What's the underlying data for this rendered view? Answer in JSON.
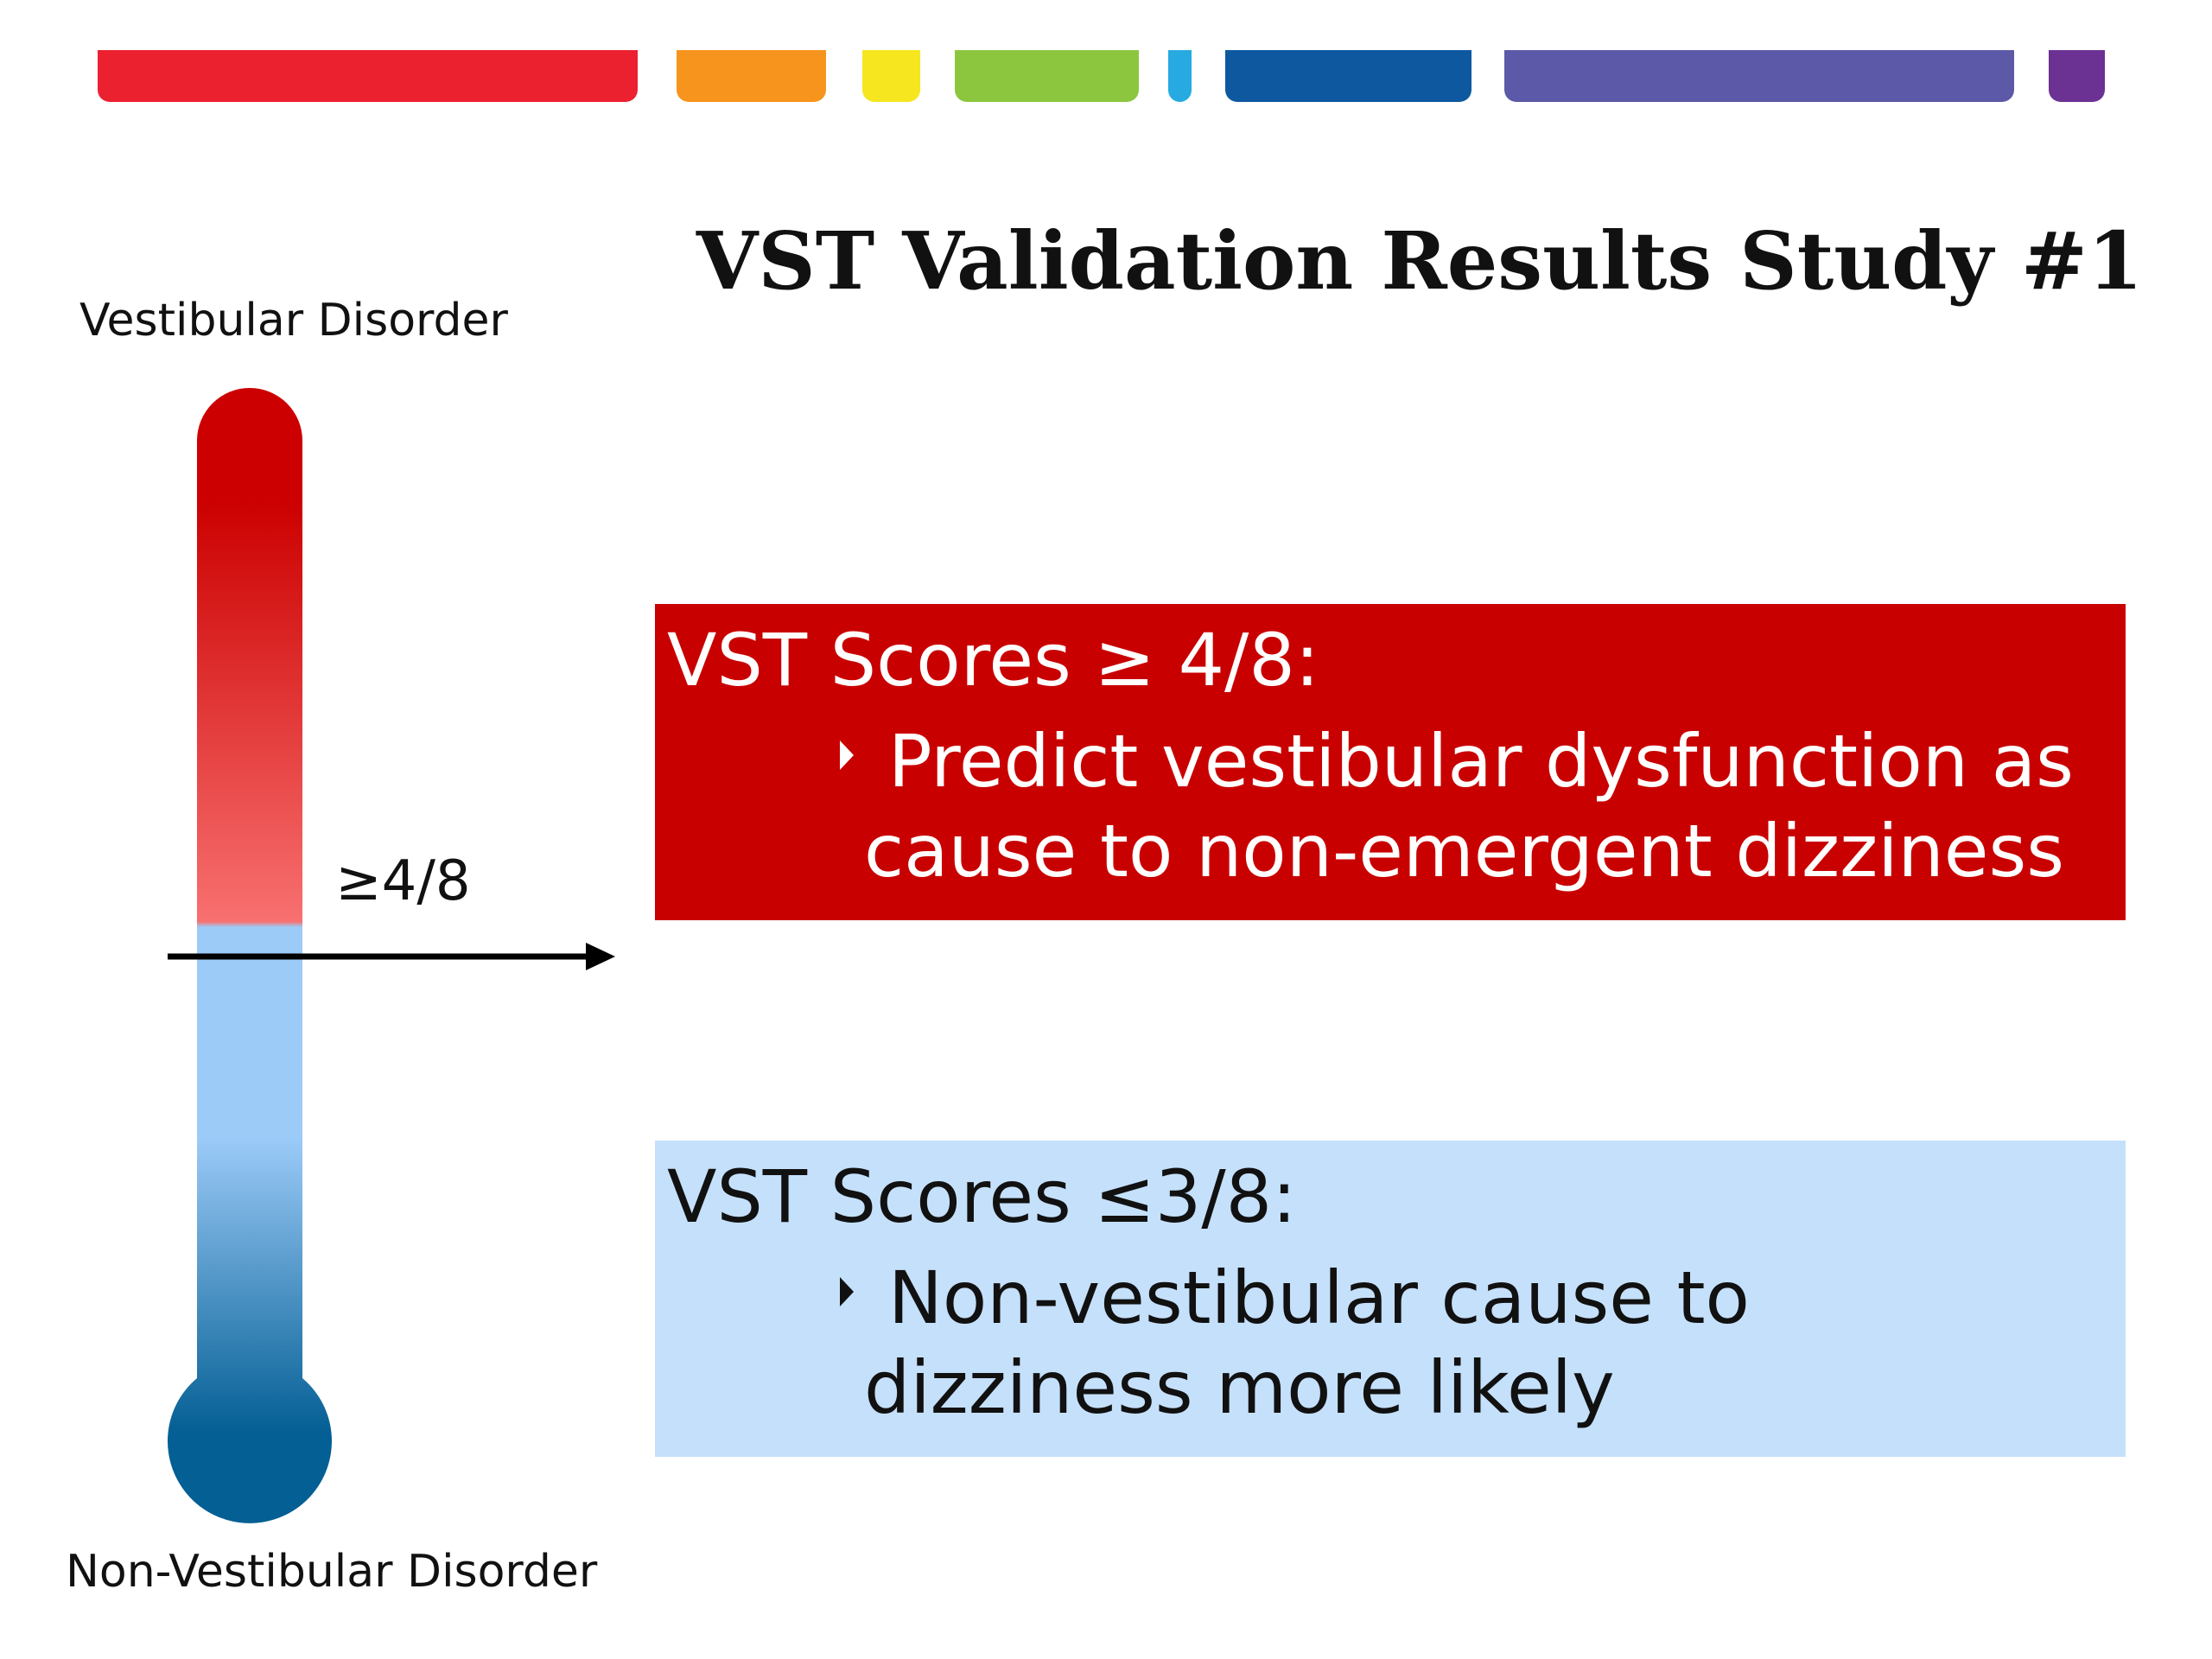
{
  "title": "VST Validation Results Study #1",
  "stripes": [
    {
      "color": "#ec2130"
    },
    {
      "color": "#f7941d"
    },
    {
      "color": "#f5e61f"
    },
    {
      "color": "#8cc63f"
    },
    {
      "color": "#27aae1"
    },
    {
      "color": "#0e58a0"
    },
    {
      "color": "#5c59a8"
    },
    {
      "color": "#6b3193"
    }
  ],
  "thermometer": {
    "top_label": "Vestibular Disorder",
    "bottom_label": "Non-Vestibular Disorder",
    "threshold_label": "≥4/8",
    "colors": {
      "high": "#cc0000",
      "mid_high": "#f87070",
      "mid_low": "#9ccbf8",
      "low": "#045f94"
    }
  },
  "boxes": {
    "high": {
      "heading": "VST Scores ≥ 4/8:",
      "bullet_line1": "Predict vestibular dysfunction as",
      "bullet_line2": "cause to non-emergent dizziness",
      "color": "#c90000"
    },
    "low": {
      "heading": "VST Scores ≤3/8:",
      "bullet_line1": "Non-vestibular cause to",
      "bullet_line2": "dizziness more likely",
      "color": "#c5e0fb"
    }
  }
}
